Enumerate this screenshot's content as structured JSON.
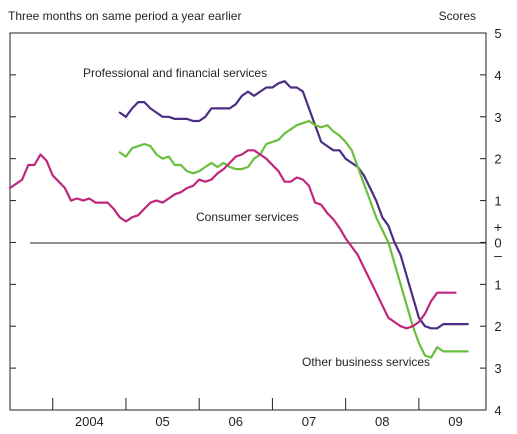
{
  "chart_data": {
    "type": "line",
    "subtitle": "Three months on same period a year earlier",
    "units_label": "Scores",
    "x_tick_labels": [
      "2004",
      "05",
      "06",
      "07",
      "08",
      "09"
    ],
    "y_tick_labels": [
      "5",
      "4",
      "3",
      "2",
      "1",
      "0",
      "1",
      "2",
      "3",
      "4"
    ],
    "y_sign_labels": [
      "+",
      "–"
    ],
    "ylim": [
      -4,
      5
    ],
    "y_tick_values": [
      5,
      4,
      3,
      2,
      1,
      0,
      -1,
      -2,
      -3,
      -4
    ],
    "zero_line": true,
    "grid": false,
    "x_time_range": [
      "2003-06",
      "2009-12"
    ],
    "x_tick_months": [
      "2004-01",
      "2005-01",
      "2006-01",
      "2007-01",
      "2008-01",
      "2009-01"
    ],
    "x_label_months": [
      "2004-07",
      "2005-07",
      "2006-07",
      "2007-07",
      "2008-07",
      "2009-07"
    ],
    "series": [
      {
        "name": "Professional and financial services",
        "color": "#4b2e83",
        "x": [
          "2004-12",
          "2005-01",
          "2005-02",
          "2005-03",
          "2005-04",
          "2005-05",
          "2005-06",
          "2005-07",
          "2005-08",
          "2005-09",
          "2005-10",
          "2005-11",
          "2005-12",
          "2006-01",
          "2006-02",
          "2006-03",
          "2006-04",
          "2006-05",
          "2006-06",
          "2006-07",
          "2006-08",
          "2006-09",
          "2006-10",
          "2006-11",
          "2006-12",
          "2007-01",
          "2007-02",
          "2007-03",
          "2007-04",
          "2007-05",
          "2007-06",
          "2007-07",
          "2007-08",
          "2007-09",
          "2007-10",
          "2007-11",
          "2007-12",
          "2008-01",
          "2008-02",
          "2008-03",
          "2008-04",
          "2008-05",
          "2008-06",
          "2008-07",
          "2008-08",
          "2008-09",
          "2008-10",
          "2008-11",
          "2008-12",
          "2009-01",
          "2009-02",
          "2009-03",
          "2009-04",
          "2009-05",
          "2009-06",
          "2009-07",
          "2009-08",
          "2009-09"
        ],
        "values": [
          3.1,
          3.0,
          3.2,
          3.35,
          3.35,
          3.2,
          3.1,
          3.0,
          3.0,
          2.95,
          2.95,
          2.95,
          2.9,
          2.9,
          3.0,
          3.2,
          3.2,
          3.2,
          3.2,
          3.3,
          3.5,
          3.6,
          3.5,
          3.6,
          3.7,
          3.7,
          3.8,
          3.85,
          3.7,
          3.7,
          3.6,
          3.2,
          2.8,
          2.4,
          2.3,
          2.2,
          2.2,
          2.0,
          1.9,
          1.8,
          1.6,
          1.3,
          1.0,
          0.6,
          0.4,
          0.0,
          -0.3,
          -0.8,
          -1.3,
          -1.8,
          -2.0,
          -2.05,
          -2.05,
          -1.95,
          -1.95,
          -1.95,
          -1.95,
          -1.95
        ]
      },
      {
        "name": "Other business services",
        "color": "#6abf3f",
        "x": [
          "2004-12",
          "2005-01",
          "2005-02",
          "2005-03",
          "2005-04",
          "2005-05",
          "2005-06",
          "2005-07",
          "2005-08",
          "2005-09",
          "2005-10",
          "2005-11",
          "2005-12",
          "2006-01",
          "2006-02",
          "2006-03",
          "2006-04",
          "2006-05",
          "2006-06",
          "2006-07",
          "2006-08",
          "2006-09",
          "2006-10",
          "2006-11",
          "2006-12",
          "2007-01",
          "2007-02",
          "2007-03",
          "2007-04",
          "2007-05",
          "2007-06",
          "2007-07",
          "2007-08",
          "2007-09",
          "2007-10",
          "2007-11",
          "2007-12",
          "2008-01",
          "2008-02",
          "2008-03",
          "2008-04",
          "2008-05",
          "2008-06",
          "2008-07",
          "2008-08",
          "2008-09",
          "2008-10",
          "2008-11",
          "2008-12",
          "2009-01",
          "2009-02",
          "2009-03",
          "2009-04",
          "2009-05",
          "2009-06",
          "2009-07",
          "2009-08",
          "2009-09"
        ],
        "values": [
          2.15,
          2.05,
          2.25,
          2.3,
          2.35,
          2.3,
          2.1,
          2.0,
          2.05,
          1.85,
          1.85,
          1.7,
          1.65,
          1.7,
          1.8,
          1.9,
          1.8,
          1.9,
          1.8,
          1.75,
          1.75,
          1.8,
          2.0,
          2.1,
          2.35,
          2.4,
          2.45,
          2.6,
          2.7,
          2.8,
          2.85,
          2.9,
          2.8,
          2.75,
          2.8,
          2.65,
          2.55,
          2.4,
          2.2,
          1.8,
          1.4,
          1.0,
          0.6,
          0.3,
          0.0,
          -0.5,
          -1.0,
          -1.5,
          -2.0,
          -2.4,
          -2.7,
          -2.75,
          -2.5,
          -2.6,
          -2.6,
          -2.6,
          -2.6,
          -2.6
        ]
      },
      {
        "name": "Consumer services",
        "color": "#c0267c",
        "x": [
          "2003-06",
          "2003-07",
          "2003-08",
          "2003-09",
          "2003-10",
          "2003-11",
          "2003-12",
          "2004-01",
          "2004-02",
          "2004-03",
          "2004-04",
          "2004-05",
          "2004-06",
          "2004-07",
          "2004-08",
          "2004-09",
          "2004-10",
          "2004-11",
          "2004-12",
          "2005-01",
          "2005-02",
          "2005-03",
          "2005-04",
          "2005-05",
          "2005-06",
          "2005-07",
          "2005-08",
          "2005-09",
          "2005-10",
          "2005-11",
          "2005-12",
          "2006-01",
          "2006-02",
          "2006-03",
          "2006-04",
          "2006-05",
          "2006-06",
          "2006-07",
          "2006-08",
          "2006-09",
          "2006-10",
          "2006-11",
          "2006-12",
          "2007-01",
          "2007-02",
          "2007-03",
          "2007-04",
          "2007-05",
          "2007-06",
          "2007-07",
          "2007-08",
          "2007-09",
          "2007-10",
          "2007-11",
          "2007-12",
          "2008-01",
          "2008-02",
          "2008-03",
          "2008-04",
          "2008-05",
          "2008-06",
          "2008-07",
          "2008-08",
          "2008-09",
          "2008-10",
          "2008-11",
          "2008-12",
          "2009-01",
          "2009-02",
          "2009-03",
          "2009-04",
          "2009-05",
          "2009-06",
          "2009-07"
        ],
        "values": [
          1.3,
          1.4,
          1.5,
          1.85,
          1.85,
          2.1,
          1.95,
          1.6,
          1.45,
          1.3,
          1.0,
          1.05,
          1.0,
          1.05,
          0.95,
          0.95,
          0.95,
          0.8,
          0.6,
          0.5,
          0.6,
          0.65,
          0.8,
          0.95,
          1.0,
          0.95,
          1.05,
          1.15,
          1.2,
          1.3,
          1.35,
          1.5,
          1.45,
          1.5,
          1.65,
          1.75,
          1.9,
          2.05,
          2.1,
          2.2,
          2.2,
          2.1,
          2.0,
          1.85,
          1.7,
          1.45,
          1.45,
          1.55,
          1.5,
          1.35,
          0.95,
          0.9,
          0.7,
          0.55,
          0.35,
          0.1,
          -0.1,
          -0.3,
          -0.6,
          -0.9,
          -1.2,
          -1.5,
          -1.8,
          -1.9,
          -2.0,
          -2.05,
          -2.0,
          -1.9,
          -1.7,
          -1.4,
          -1.2,
          -1.2,
          -1.2,
          -1.2
        ]
      }
    ],
    "annotations": [
      {
        "text": "Professional and financial services",
        "series": "Professional and financial services"
      },
      {
        "text": "Consumer services",
        "series": "Consumer services"
      },
      {
        "text": "Other business services",
        "series": "Other business services"
      }
    ]
  }
}
